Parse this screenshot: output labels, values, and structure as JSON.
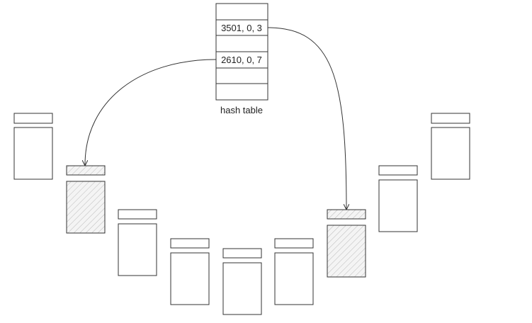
{
  "hash_table": {
    "caption": "hash table",
    "slots": [
      "",
      "3501, 0, 3",
      "",
      "2610, 0, 7",
      "",
      ""
    ]
  },
  "blocks": [
    {
      "id": "block-1",
      "hatched": false
    },
    {
      "id": "block-2",
      "hatched": true
    },
    {
      "id": "block-3",
      "hatched": false
    },
    {
      "id": "block-4",
      "hatched": false
    },
    {
      "id": "block-5",
      "hatched": false
    },
    {
      "id": "block-6",
      "hatched": false
    },
    {
      "id": "block-7",
      "hatched": true
    },
    {
      "id": "block-8",
      "hatched": false
    },
    {
      "id": "block-9",
      "hatched": false
    }
  ],
  "links": [
    {
      "from_slot": 1,
      "to_block": 7
    },
    {
      "from_slot": 3,
      "to_block": 2
    }
  ],
  "colors": {
    "stroke": "#333333",
    "hatch": "#bbbbbb",
    "hatch_bg": "#f4f4f4"
  }
}
